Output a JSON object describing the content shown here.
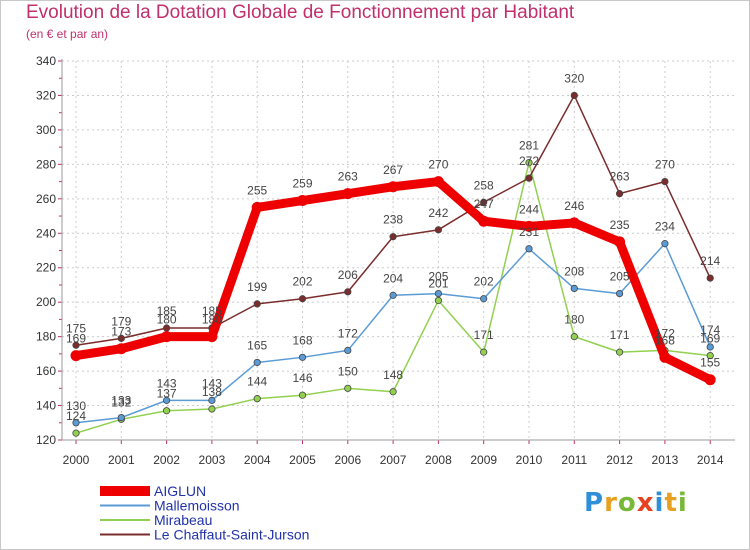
{
  "header": {
    "title": "Evolution de la Dotation Globale de Fonctionnement par Habitant",
    "subtitle": "(en € et par an)"
  },
  "logo": {
    "letters": [
      "P",
      "r",
      "o",
      "x",
      "i",
      "t",
      "i"
    ],
    "colors": [
      "#2f8fd8",
      "#e8a020",
      "#7ab83a",
      "#e84020",
      "#2f8fd8",
      "#e8a020",
      "#7ab83a"
    ]
  },
  "colors": {
    "frame": "#c8c8c8",
    "axis": "#9a9a9a",
    "grid": "#cccccc",
    "title": "#c0306c"
  },
  "chart_data": {
    "type": "line",
    "title": "Evolution de la Dotation Globale de Fonctionnement par Habitant",
    "subtitle": "(en € et par an)",
    "xlabel": "",
    "ylabel": "",
    "grid": true,
    "legend_position": "bottom-left",
    "ylim": [
      120,
      340
    ],
    "yticks": [
      120,
      140,
      160,
      180,
      200,
      220,
      240,
      260,
      280,
      300,
      320,
      340
    ],
    "categories": [
      "2000",
      "2001",
      "2002",
      "2003",
      "2004",
      "2005",
      "2006",
      "2007",
      "2008",
      "2009",
      "2010",
      "2011",
      "2012",
      "2013",
      "2014"
    ],
    "series": [
      {
        "name": "AIGLUN",
        "color": "#ee0000",
        "values": [
          169,
          173,
          180,
          180,
          255,
          259,
          263,
          267,
          270,
          247,
          244,
          246,
          235,
          168,
          155
        ]
      },
      {
        "name": "Mallemoisson",
        "color": "#5b9bd5",
        "values": [
          130,
          133,
          143,
          143,
          165,
          168,
          172,
          204,
          205,
          202,
          231,
          208,
          205,
          234,
          174
        ]
      },
      {
        "name": "Mirabeau",
        "color": "#92d050",
        "values": [
          124,
          132,
          137,
          138,
          144,
          146,
          150,
          148,
          201,
          171,
          281,
          180,
          171,
          172,
          169
        ]
      },
      {
        "name": "Le Chaffaut-Saint-Jurson",
        "color": "#7b2c2c",
        "values": [
          175,
          179,
          185,
          185,
          199,
          202,
          206,
          238,
          242,
          258,
          272,
          320,
          263,
          270,
          214
        ]
      }
    ]
  }
}
